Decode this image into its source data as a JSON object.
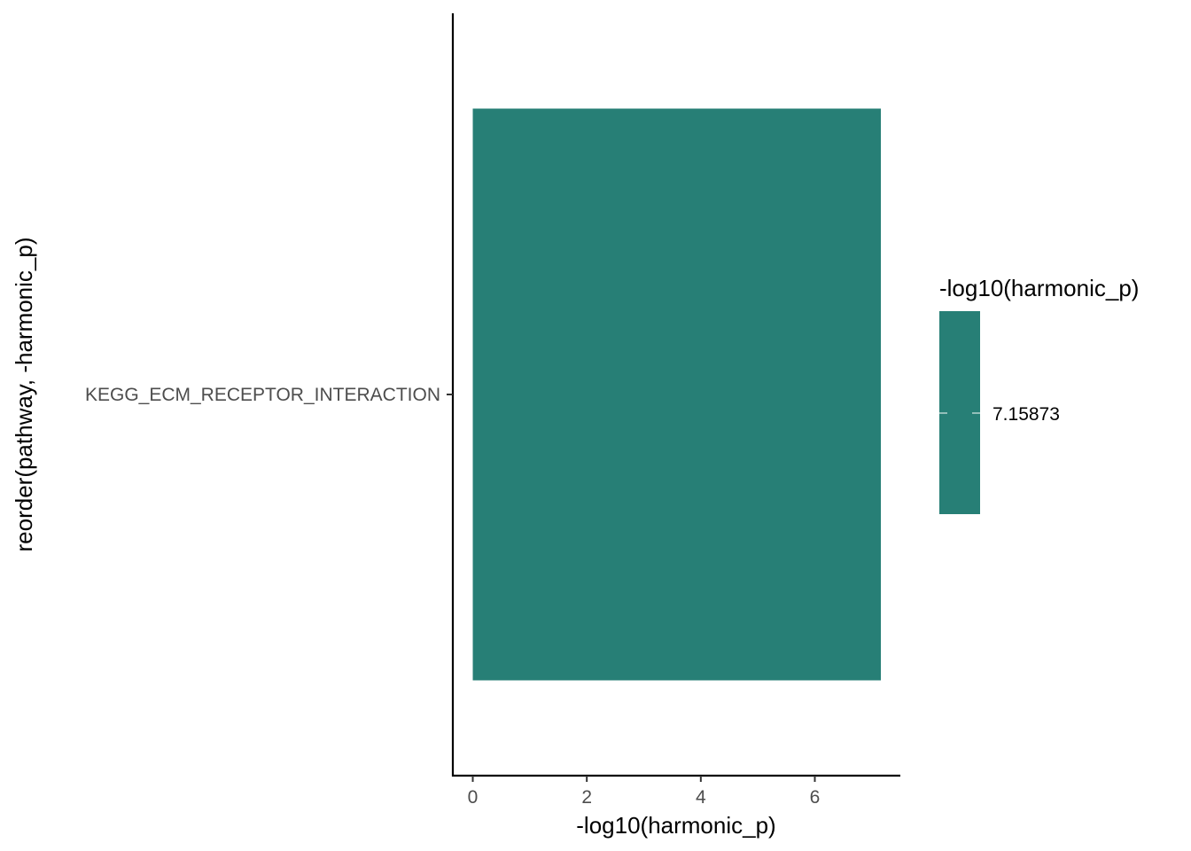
{
  "chart_data": {
    "type": "bar",
    "orientation": "horizontal",
    "categories": [
      "KEGG_ECM_RECEPTOR_INTERACTION"
    ],
    "values": [
      7.15873
    ],
    "xlabel": "-log10(harmonic_p)",
    "ylabel": "reorder(pathway, -harmonic_p)",
    "xlim": [
      -0.35,
      7.5
    ],
    "xticks": [
      0,
      2,
      4,
      6
    ],
    "grid": false,
    "bar_color": "#277F76",
    "legend": {
      "title": "-log10(harmonic_p)",
      "position": "right",
      "type": "colorbar",
      "labels": [
        "7.15873"
      ],
      "color": "#277F76"
    }
  }
}
